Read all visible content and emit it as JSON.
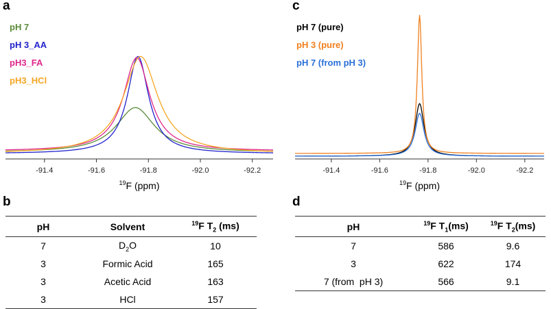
{
  "panels": {
    "a": "a",
    "b": "b",
    "c": "c",
    "d": "d"
  },
  "chart_data": [
    {
      "panel": "a",
      "type": "line",
      "title": "",
      "xlabel_sup": "19",
      "xlabel_text": "F (ppm)",
      "xlim": [
        -91.25,
        -92.28
      ],
      "x_ticks": [
        -91.4,
        -91.6,
        -91.8,
        -92.0,
        -92.2
      ],
      "x_tick_labels": [
        "-91.4",
        "-91.6",
        "-91.8",
        "-92.0",
        "-92.2"
      ],
      "ylim": [
        0,
        1
      ],
      "grid": false,
      "legend_position": "top-left",
      "series": [
        {
          "name": "pH 7",
          "color": "#5a8a3a",
          "center": -91.75,
          "amplitude": 0.36,
          "width": 0.09,
          "baseline": 0.03
        },
        {
          "name": "pH 3_AA",
          "color": "#2222cc",
          "center": -91.76,
          "amplitude": 0.78,
          "width": 0.05,
          "baseline": 0.02
        },
        {
          "name": "pH3_FA",
          "color": "#e0268c",
          "center": -91.755,
          "amplitude": 0.75,
          "width": 0.062,
          "baseline": 0.04
        },
        {
          "name": "pH3_HCl",
          "color": "#f5a623",
          "center": -91.77,
          "amplitude": 0.78,
          "width": 0.08,
          "baseline": 0.02
        }
      ]
    },
    {
      "panel": "c",
      "type": "line",
      "title": "",
      "xlabel_sup": "19",
      "xlabel_text": "F (ppm)",
      "xlim": [
        -91.25,
        -92.28
      ],
      "x_ticks": [
        -91.4,
        -91.6,
        -91.8,
        -92.0,
        -92.2
      ],
      "x_tick_labels": [
        "-91.4",
        "-91.6",
        "-91.8",
        "-92.0",
        "-92.2"
      ],
      "ylim": [
        0,
        1
      ],
      "grid": false,
      "legend_position": "top-left",
      "series": [
        {
          "name": "pH 7 (pure)",
          "color": "#000000",
          "center": -91.765,
          "amplitude": 0.38,
          "width": 0.022,
          "baseline": 0.0
        },
        {
          "name": "pH 3 (pure)",
          "color": "#f07f1e",
          "center": -91.765,
          "amplitude": 1.0,
          "width": 0.011,
          "baseline": 0.02
        },
        {
          "name": "pH 7 (from pH 3)",
          "color": "#2a6fd8",
          "center": -91.765,
          "amplitude": 0.31,
          "width": 0.022,
          "baseline": 0.0
        }
      ]
    }
  ],
  "table_b": {
    "headers": {
      "ph": "pH",
      "solvent": "Solvent",
      "t2_sup": "19",
      "t2_pre": "F T",
      "t2_sub": "2",
      "t2_post": " (ms)"
    },
    "rows": [
      {
        "ph": "7",
        "solvent_pre": "D",
        "solvent_sub": "2",
        "solvent_post": "O",
        "t2": "10"
      },
      {
        "ph": "3",
        "solvent_pre": "Formic Acid",
        "solvent_sub": "",
        "solvent_post": "",
        "t2": "165"
      },
      {
        "ph": "3",
        "solvent_pre": "Acetic Acid",
        "solvent_sub": "",
        "solvent_post": "",
        "t2": "163"
      },
      {
        "ph": "3",
        "solvent_pre": "HCl",
        "solvent_sub": "",
        "solvent_post": "",
        "t2": "157"
      }
    ]
  },
  "table_d": {
    "headers": {
      "ph": "pH",
      "t1_sup": "19",
      "t1_pre": "F T",
      "t1_sub": "1",
      "t1_post": "(ms)",
      "t2_sup": "19",
      "t2_pre": "F T",
      "t2_sub": "2",
      "t2_post": "(ms)"
    },
    "rows": [
      {
        "ph": "7",
        "t1": "586",
        "t2": "9.6"
      },
      {
        "ph": "3",
        "t1": "622",
        "t2": "174"
      },
      {
        "ph": "7 (from  pH 3)",
        "t1": "566",
        "t2": "9.1"
      }
    ]
  }
}
